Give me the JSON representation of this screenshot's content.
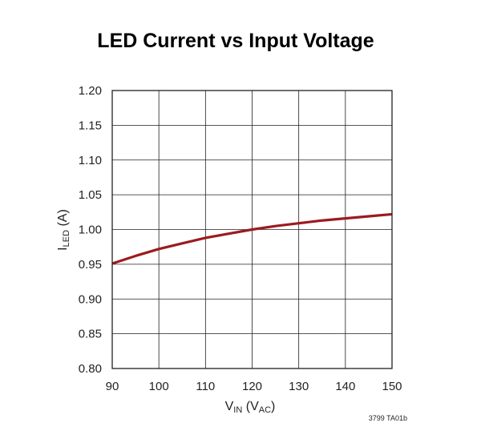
{
  "chart_data": {
    "type": "line",
    "title": "LED Current vs Input Voltage",
    "xlabel": {
      "main": "V",
      "main_sub": "IN",
      "paren_open": " (V",
      "paren_sub": "AC",
      "paren_close": ")"
    },
    "ylabel": {
      "main": "I",
      "main_sub": "LED",
      "unit": " (A)"
    },
    "xlim": [
      90,
      150
    ],
    "ylim": [
      0.8,
      1.2
    ],
    "xticks": [
      90,
      100,
      110,
      120,
      130,
      140,
      150
    ],
    "yticks": [
      "0.80",
      "0.85",
      "0.90",
      "0.95",
      "1.00",
      "1.05",
      "1.10",
      "1.15",
      "1.20"
    ],
    "grid": true,
    "series": [
      {
        "color": "#9b1b1f",
        "x": [
          90,
          95,
          100,
          105,
          110,
          115,
          120,
          125,
          130,
          135,
          140,
          145,
          150
        ],
        "y": [
          0.951,
          0.962,
          0.972,
          0.98,
          0.988,
          0.994,
          1.0,
          1.005,
          1.009,
          1.013,
          1.016,
          1.019,
          1.022
        ]
      }
    ],
    "figure_code": "3799 TA01b"
  }
}
